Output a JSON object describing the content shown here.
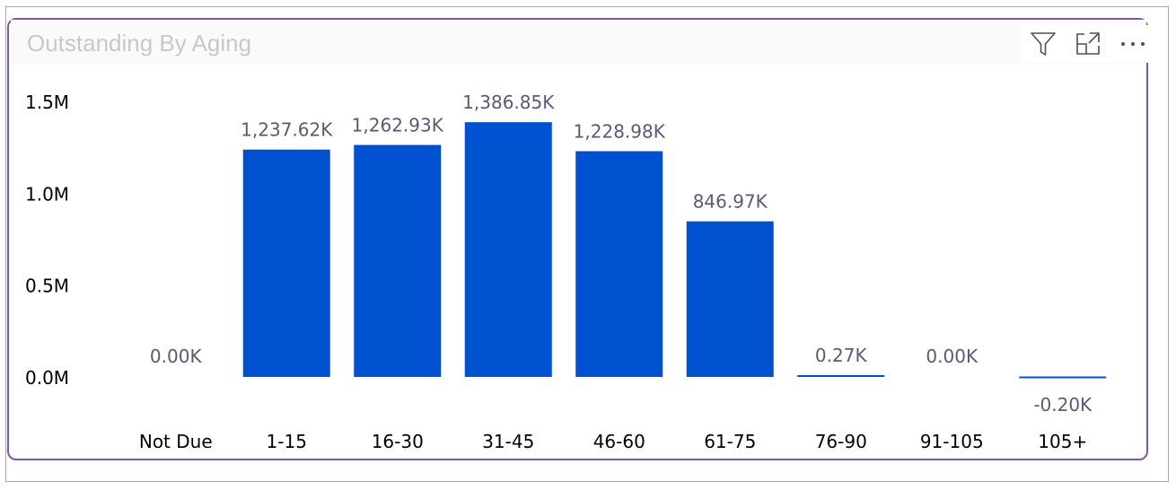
{
  "visual": {
    "title": "Outstanding By Aging",
    "toolbar": [
      {
        "name": "filter-icon",
        "icon": "filter"
      },
      {
        "name": "focus-mode-icon",
        "icon": "expand"
      },
      {
        "name": "more-options-icon",
        "icon": "ellipsis"
      }
    ]
  },
  "chart_data": {
    "type": "bar",
    "title": "Outstanding By Aging",
    "categories": [
      "Not Due",
      "1-15",
      "16-30",
      "31-45",
      "46-60",
      "61-75",
      "76-90",
      "91-105",
      "105+"
    ],
    "values": [
      0.0,
      1237.62,
      1262.93,
      1386.85,
      1228.98,
      846.97,
      0.27,
      0.0,
      -0.2
    ],
    "data_labels": [
      "0.00K",
      "1,237.62K",
      "1,262.93K",
      "1,386.85K",
      "1,228.98K",
      "846.97K",
      "0.27K",
      "0.00K",
      "-0.20K"
    ],
    "value_unit": "K",
    "ylim": [
      0,
      1500
    ],
    "y_ticks": [
      {
        "value": 0,
        "label": "0.0M"
      },
      {
        "value": 500,
        "label": "0.5M"
      },
      {
        "value": 1000,
        "label": "1.0M"
      },
      {
        "value": 1500,
        "label": "1.5M"
      }
    ],
    "xlabel": "",
    "ylabel": "",
    "grid": false,
    "legend": "none",
    "colors": {
      "bar": "#0051cf",
      "data_label": "#5a5a78",
      "axis_text": "#000000"
    }
  }
}
